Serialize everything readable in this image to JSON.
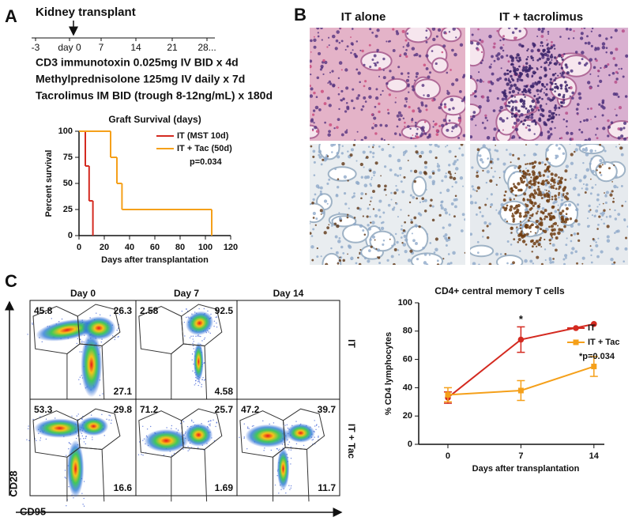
{
  "panels": {
    "a": {
      "label": "A",
      "timeline": {
        "event": "Kidney transplant",
        "ticks": [
          "-3",
          "day 0",
          "7",
          "14",
          "21",
          "28..."
        ]
      },
      "protocol": [
        "CD3 immunotoxin 0.025mg IV BID x 4d",
        "Methylprednisolone 125mg IV daily x 7d",
        "Tacrolimus IM BID (trough 8-12ng/mL) x 180d"
      ]
    },
    "b": {
      "label": "B",
      "columns": [
        "IT alone",
        "IT + tacrolimus"
      ]
    },
    "c": {
      "label": "C",
      "flow": {
        "columns": [
          "Day 0",
          "Day 7",
          "Day 14"
        ],
        "rows": [
          {
            "name": "IT",
            "plots": [
              [
                "45.8",
                "26.3",
                "27.1"
              ],
              [
                "2.58",
                "92.5",
                "4.58"
              ],
              []
            ]
          },
          {
            "name": "IT + Tac",
            "plots": [
              [
                "53.3",
                "29.8",
                "16.6"
              ],
              [
                "71.2",
                "25.7",
                "1.69"
              ],
              [
                "47.2",
                "39.7",
                "11.7"
              ]
            ]
          }
        ],
        "y_axis": "CD28",
        "x_axis": "CD95"
      }
    }
  },
  "chart_data": [
    {
      "type": "step",
      "title": "Graft Survival (days)",
      "x_label": "Days after transplantation",
      "y_label": "Percent survival",
      "xlim": [
        0,
        120
      ],
      "xticks": [
        0,
        20,
        40,
        60,
        80,
        100,
        120
      ],
      "ylim": [
        0,
        100
      ],
      "yticks": [
        0,
        25,
        50,
        75,
        100
      ],
      "series": [
        {
          "name": "IT (MST 10d)",
          "color": "#d42a20",
          "x": [
            0,
            5,
            8,
            11
          ],
          "values": [
            100,
            66.7,
            33.3,
            0
          ]
        },
        {
          "name": "IT + Tac (50d)",
          "color": "#f5a01a",
          "x": [
            0,
            25,
            30,
            34,
            105
          ],
          "values": [
            100,
            75,
            50,
            25,
            0
          ]
        }
      ],
      "annotations": [
        "p=0.034"
      ],
      "legend": "upper right"
    },
    {
      "type": "line",
      "title": "CD4+ central memory T cells",
      "x_label": "Days after transplantation",
      "y_label": "% CD4 lymphocytes",
      "x": [
        0,
        7,
        14
      ],
      "xlim": [
        -2.8,
        15
      ],
      "xticks": [
        0,
        7,
        14
      ],
      "ylim": [
        0,
        100
      ],
      "yticks": [
        0,
        20,
        40,
        60,
        80,
        100
      ],
      "series": [
        {
          "name": "IT",
          "color": "#d42a20",
          "marker": "circle",
          "values": [
            33,
            74,
            85
          ],
          "errors": [
            4,
            9,
            null
          ]
        },
        {
          "name": "IT + Tac",
          "color": "#f5a01a",
          "marker": "square",
          "values": [
            35,
            38,
            55
          ],
          "errors": [
            5,
            7,
            7
          ]
        }
      ],
      "annotations": [
        "*",
        "*p=0.034"
      ],
      "legend": "right"
    }
  ]
}
